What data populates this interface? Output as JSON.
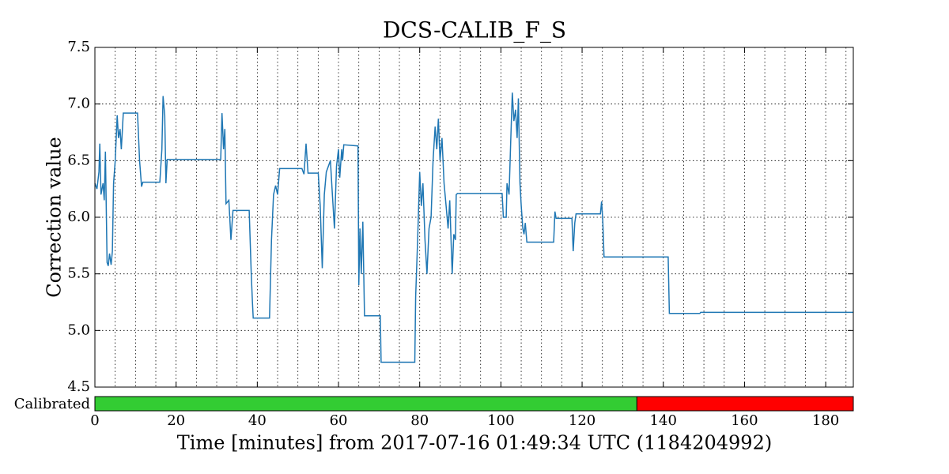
{
  "chart_data": {
    "type": "line",
    "title": "DCS-CALIB_F_S",
    "ylabel": "Correction value",
    "xlabel": "Time [minutes] from 2017-07-16 01:49:34 UTC (1184204992)",
    "color": "#1f77b4",
    "grid": true,
    "x_minor_step": 5,
    "xlim": [
      0,
      186.8
    ],
    "ylim": [
      4.5,
      7.5
    ],
    "xticks": [
      0,
      20,
      40,
      60,
      80,
      100,
      120,
      140,
      160,
      180
    ],
    "yticks": [
      4.5,
      {
        "value": 5,
        "label": "5.0"
      },
      5.5,
      {
        "value": 6,
        "label": "6.0"
      },
      6.5,
      {
        "value": 7,
        "label": "7.0"
      },
      7.5
    ],
    "x": [
      0,
      0.5,
      1,
      1.2,
      1.5,
      2,
      2.3,
      2.6,
      3,
      3.3,
      3.6,
      4,
      4.3,
      4.6,
      5,
      5.5,
      5.8,
      6.2,
      6.5,
      7,
      10.5,
      11,
      11.5,
      11.8,
      16,
      16.5,
      16.8,
      17.2,
      17.5,
      17.8,
      31,
      31.3,
      31.7,
      32,
      32.3,
      33,
      33.5,
      34,
      38,
      38.5,
      38.8,
      39,
      43,
      43.5,
      44,
      44.5,
      45,
      45.5,
      51,
      51.5,
      52,
      52.5,
      55,
      55.5,
      56,
      56.5,
      57,
      58,
      58.5,
      59,
      59.5,
      60,
      60.3,
      60.8,
      61,
      61.3,
      64.8,
      65,
      65.3,
      65.6,
      66,
      66.4,
      70.3,
      70.5,
      78.8,
      79,
      79.5,
      80,
      80.4,
      80.8,
      81.3,
      81.8,
      82.3,
      82.8,
      83.3,
      83.8,
      84.2,
      84.6,
      85,
      85.5,
      86,
      86.5,
      87,
      87.4,
      87.8,
      88,
      88.4,
      88.8,
      89,
      89.3,
      100.3,
      100.6,
      101.3,
      101.5,
      102,
      102.4,
      102.8,
      103.2,
      103.6,
      104,
      104.3,
      104.7,
      105,
      105.4,
      105.7,
      106,
      106.4,
      113,
      113.3,
      113.6,
      117.5,
      117.8,
      118.2,
      118.5,
      124.5,
      124.8,
      125.1,
      125.4,
      141.2,
      141.5,
      149,
      149.2,
      186.8
    ],
    "values": [
      6.3,
      6.25,
      6.4,
      6.65,
      6.2,
      6.3,
      6.15,
      6.58,
      5.6,
      5.57,
      5.68,
      5.58,
      5.7,
      6.3,
      6.5,
      6.9,
      6.7,
      6.78,
      6.6,
      6.92,
      6.92,
      6.5,
      6.27,
      6.31,
      6.31,
      6.6,
      7.07,
      6.9,
      6.3,
      6.51,
      6.51,
      6.92,
      6.6,
      6.78,
      6.12,
      6.15,
      5.8,
      6.06,
      6.06,
      5.5,
      5.25,
      5.11,
      5.11,
      5.8,
      6.2,
      6.28,
      6.2,
      6.43,
      6.43,
      6.38,
      6.65,
      6.39,
      6.39,
      6.1,
      5.55,
      6.2,
      6.4,
      6.5,
      6.2,
      5.9,
      6.45,
      6.6,
      6.35,
      6.6,
      6.5,
      6.64,
      6.63,
      5.4,
      5.9,
      5.5,
      5.96,
      5.13,
      5.13,
      4.72,
      4.72,
      5.3,
      5.8,
      6.4,
      6.1,
      6.3,
      5.8,
      5.5,
      5.9,
      6.0,
      6.5,
      6.8,
      6.6,
      6.87,
      6.5,
      6.7,
      6.3,
      6.1,
      5.9,
      6.15,
      5.7,
      5.5,
      5.85,
      5.8,
      6.2,
      6.21,
      6.21,
      6.0,
      6.0,
      6.3,
      6.2,
      6.65,
      7.1,
      6.85,
      6.95,
      6.7,
      7.05,
      6.3,
      6.1,
      5.9,
      5.85,
      5.95,
      5.78,
      5.78,
      6.05,
      5.99,
      5.99,
      5.7,
      5.95,
      6.03,
      6.03,
      6.14,
      5.97,
      5.65,
      5.65,
      5.15,
      5.15,
      5.16,
      5.16
    ],
    "state": {
      "label": "Calibrated",
      "segments": [
        {
          "start": 0,
          "end": 133.5,
          "color": "#33cc33"
        },
        {
          "start": 133.5,
          "end": 186.8,
          "color": "#ff0000"
        }
      ]
    }
  }
}
